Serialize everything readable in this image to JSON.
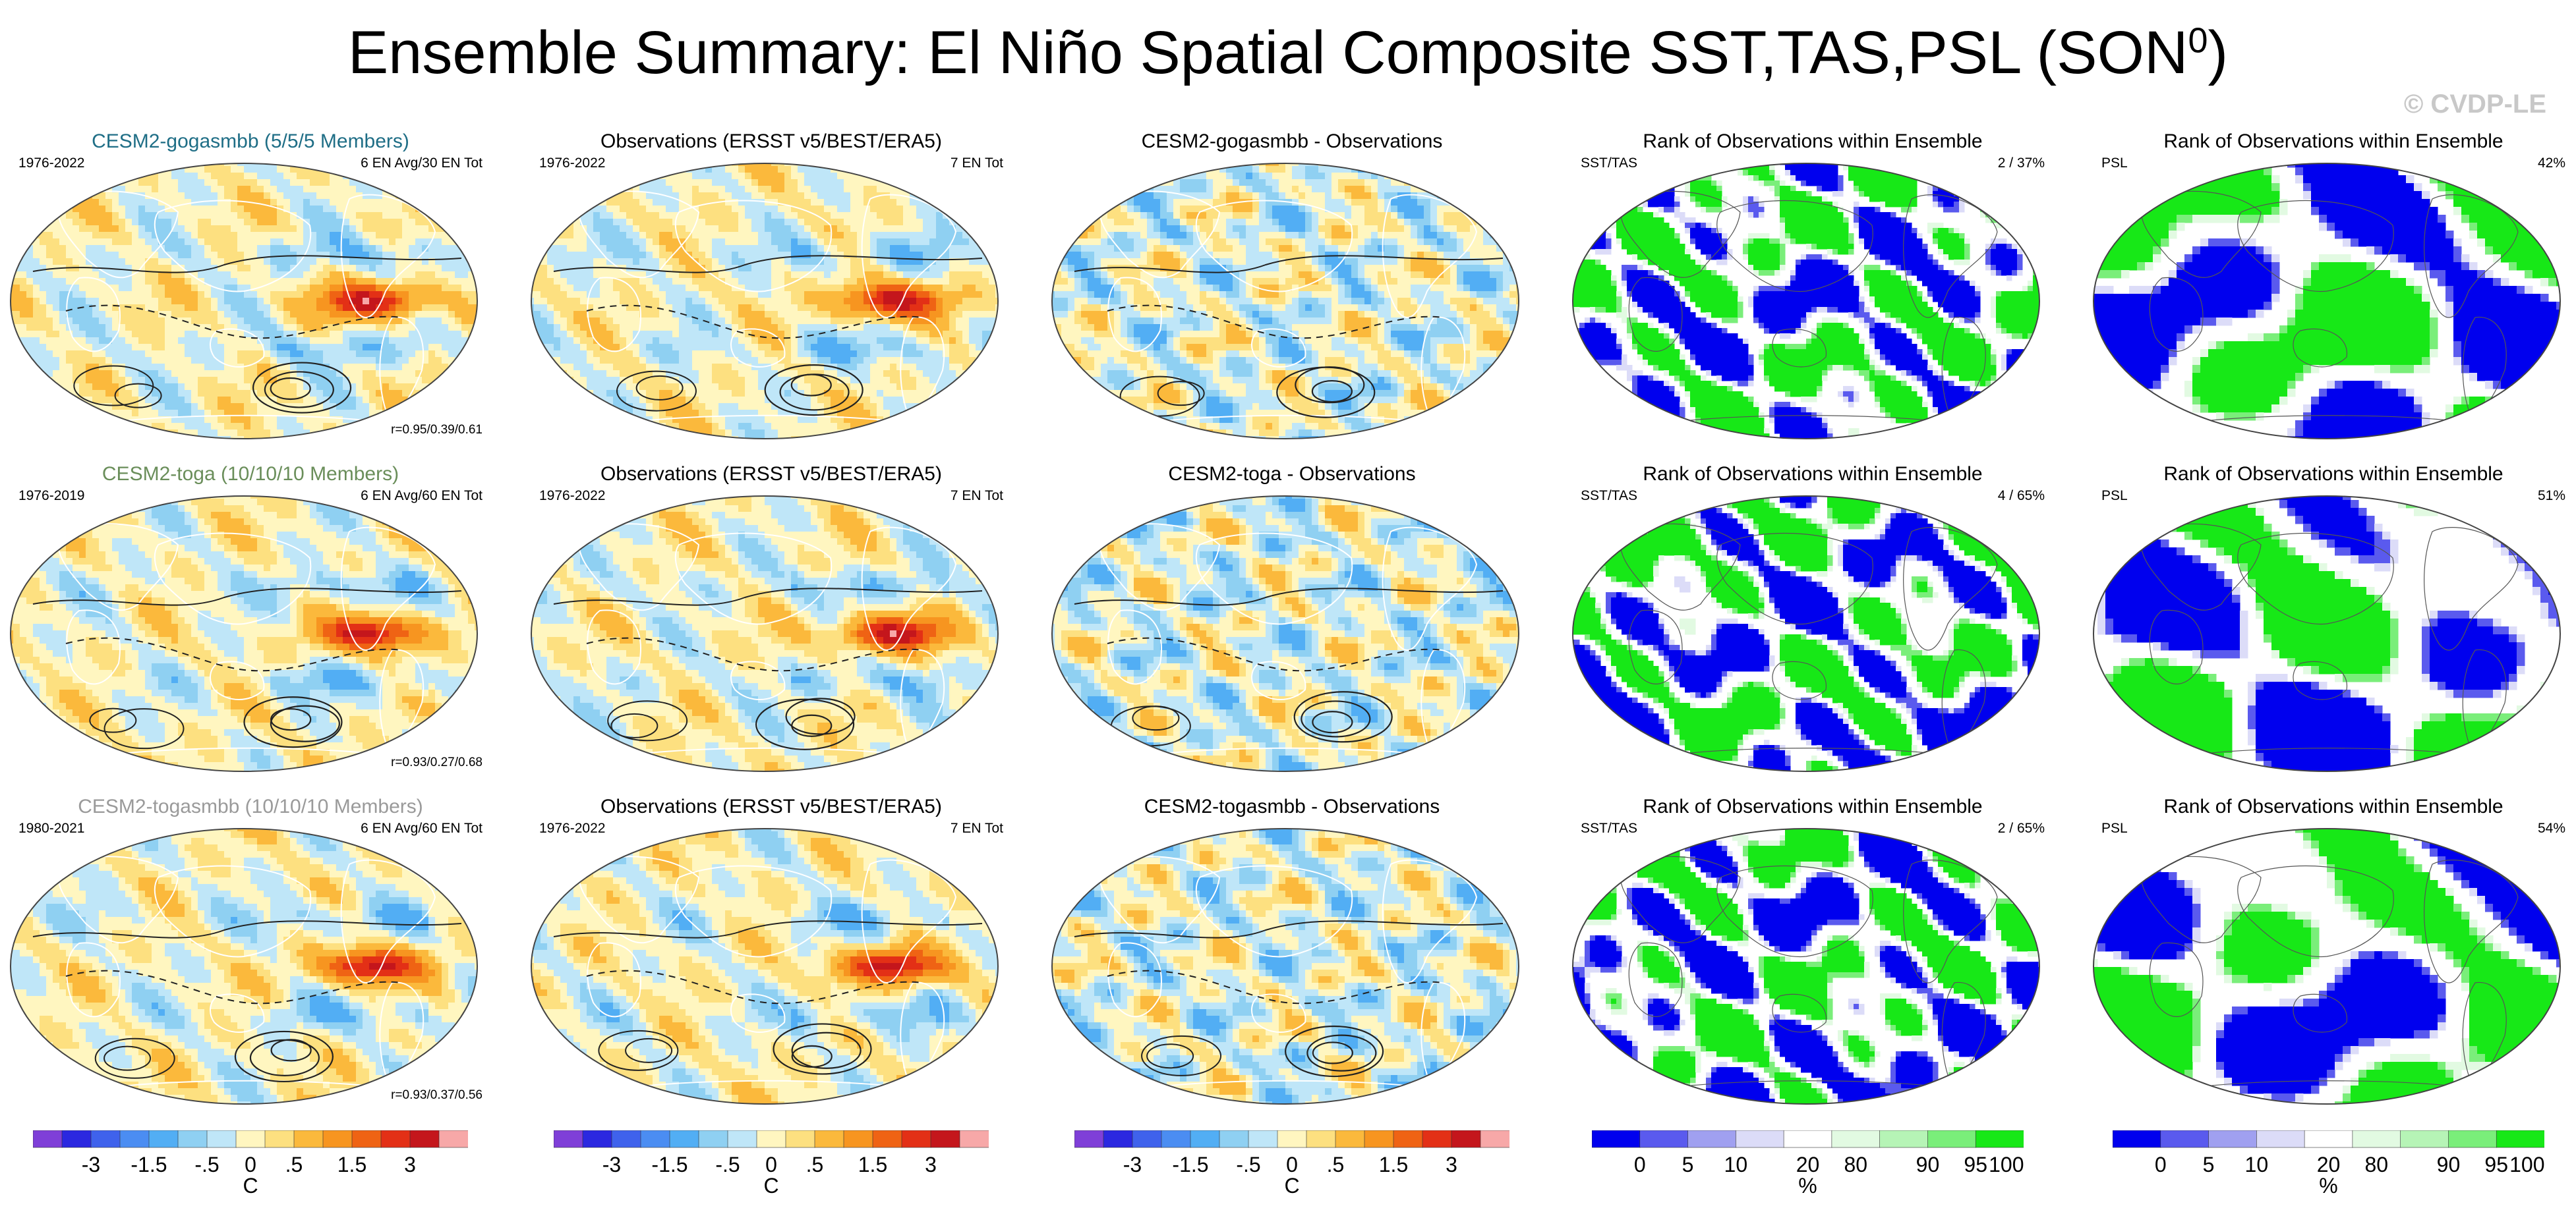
{
  "title": "Ensemble Summary: El Niño Spatial Composite SST,TAS,PSL (SON",
  "title_sup": "0",
  "title_close": ")",
  "watermark": "© CVDP-LE",
  "colors": {
    "anomaly_palette": [
      "#7f3fd8",
      "#2b28e0",
      "#3f62ec",
      "#4b8df2",
      "#52aef4",
      "#8fd0f2",
      "#bfe6f8",
      "#fff6c0",
      "#fde080",
      "#fbb93c",
      "#f79520",
      "#ef6314",
      "#e33016",
      "#c4161c",
      "#f7a8a8"
    ],
    "rank_palette": [
      "#0000ee",
      "#5a5aee",
      "#a0a0f0",
      "#dcdcf8",
      "#ffffff",
      "#e2fae2",
      "#b6f4b6",
      "#7aee7a",
      "#17e817"
    ]
  },
  "chart_data": {
    "type": "heatmap",
    "season": "SON",
    "rows": [
      {
        "model": "CESM2-gogasmbb (5/5/5 Members)",
        "model_color": "#1f6e86",
        "model_period": "1976-2022",
        "model_count": "6 EN Avg/30 EN Tot",
        "pattern_corr": "r=0.95/0.39/0.61",
        "obs_title": "Observations (ERSST v5/BEST/ERA5)",
        "obs_period": "1976-2022",
        "obs_count": "7 EN Tot",
        "diff_title": "CESM2-gogasmbb - Observations",
        "rank_sst_title": "Rank of Observations within Ensemble",
        "rank_sst_label": "SST/TAS",
        "rank_sst_value": "2 /  37%",
        "rank_psl_title": "Rank of Observations within Ensemble",
        "rank_psl_label": "PSL",
        "rank_psl_value": "42%"
      },
      {
        "model": "CESM2-toga (10/10/10 Members)",
        "model_color": "#6a8e5a",
        "model_period": "1976-2019",
        "model_count": "6 EN Avg/60 EN Tot",
        "pattern_corr": "r=0.93/0.27/0.68",
        "obs_title": "Observations (ERSST v5/BEST/ERA5)",
        "obs_period": "1976-2022",
        "obs_count": "7 EN Tot",
        "diff_title": "CESM2-toga - Observations",
        "rank_sst_title": "Rank of Observations within Ensemble",
        "rank_sst_label": "SST/TAS",
        "rank_sst_value": "4 /  65%",
        "rank_psl_title": "Rank of Observations within Ensemble",
        "rank_psl_label": "PSL",
        "rank_psl_value": "51%"
      },
      {
        "model": "CESM2-togasmbb (10/10/10 Members)",
        "model_color": "#9a9a9a",
        "model_period": "1980-2021",
        "model_count": "6 EN Avg/60 EN Tot",
        "pattern_corr": "r=0.93/0.37/0.56",
        "obs_title": "Observations (ERSST v5/BEST/ERA5)",
        "obs_period": "1976-2022",
        "obs_count": "7 EN Tot",
        "diff_title": "CESM2-togasmbb - Observations",
        "rank_sst_title": "Rank of Observations within Ensemble",
        "rank_sst_label": "SST/TAS",
        "rank_sst_value": "2 /  65%",
        "rank_psl_title": "Rank of Observations within Ensemble",
        "rank_psl_label": "PSL",
        "rank_psl_value": "54%"
      }
    ],
    "anomaly_colorbar": {
      "ticks": [
        "-3",
        "-1.5",
        "-.5",
        "0",
        ".5",
        "1.5",
        "3"
      ],
      "unit": "C"
    },
    "rank_colorbar": {
      "ticks": [
        "0",
        "5",
        "10",
        "20",
        "80",
        "90",
        "95",
        "100"
      ],
      "unit": "%"
    }
  }
}
